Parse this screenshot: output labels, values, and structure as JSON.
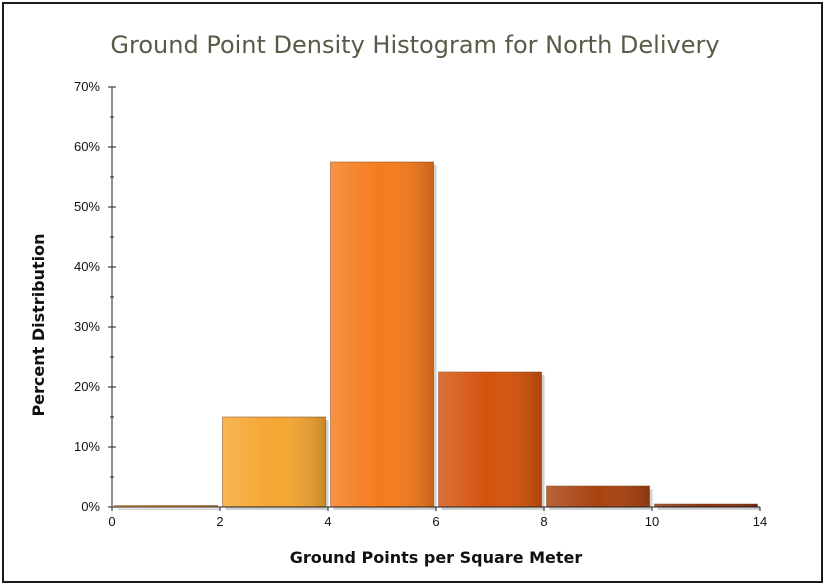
{
  "chart_data": {
    "type": "bar",
    "title": "Ground Point Density Histogram for North Delivery",
    "xlabel": "Ground Points per Square Meter",
    "ylabel": "Percent Distribution",
    "x_ticks": [
      "0",
      "2",
      "4",
      "6",
      "8",
      "10",
      "14"
    ],
    "categories": [
      "0-2",
      "2-4",
      "4-6",
      "6-8",
      "8-10",
      "10-14"
    ],
    "values": [
      0,
      15,
      57.5,
      22.5,
      3.5,
      0.5
    ],
    "ylim": [
      0,
      70
    ],
    "y_ticks": [
      "0%",
      "10%",
      "20%",
      "30%",
      "40%",
      "50%",
      "60%",
      "70%"
    ],
    "grid": false,
    "legend": "none",
    "colors": [
      "#f5a631",
      "#f5a631",
      "#f57a1c",
      "#d4520c",
      "#a8420f",
      "#8a3210"
    ]
  }
}
